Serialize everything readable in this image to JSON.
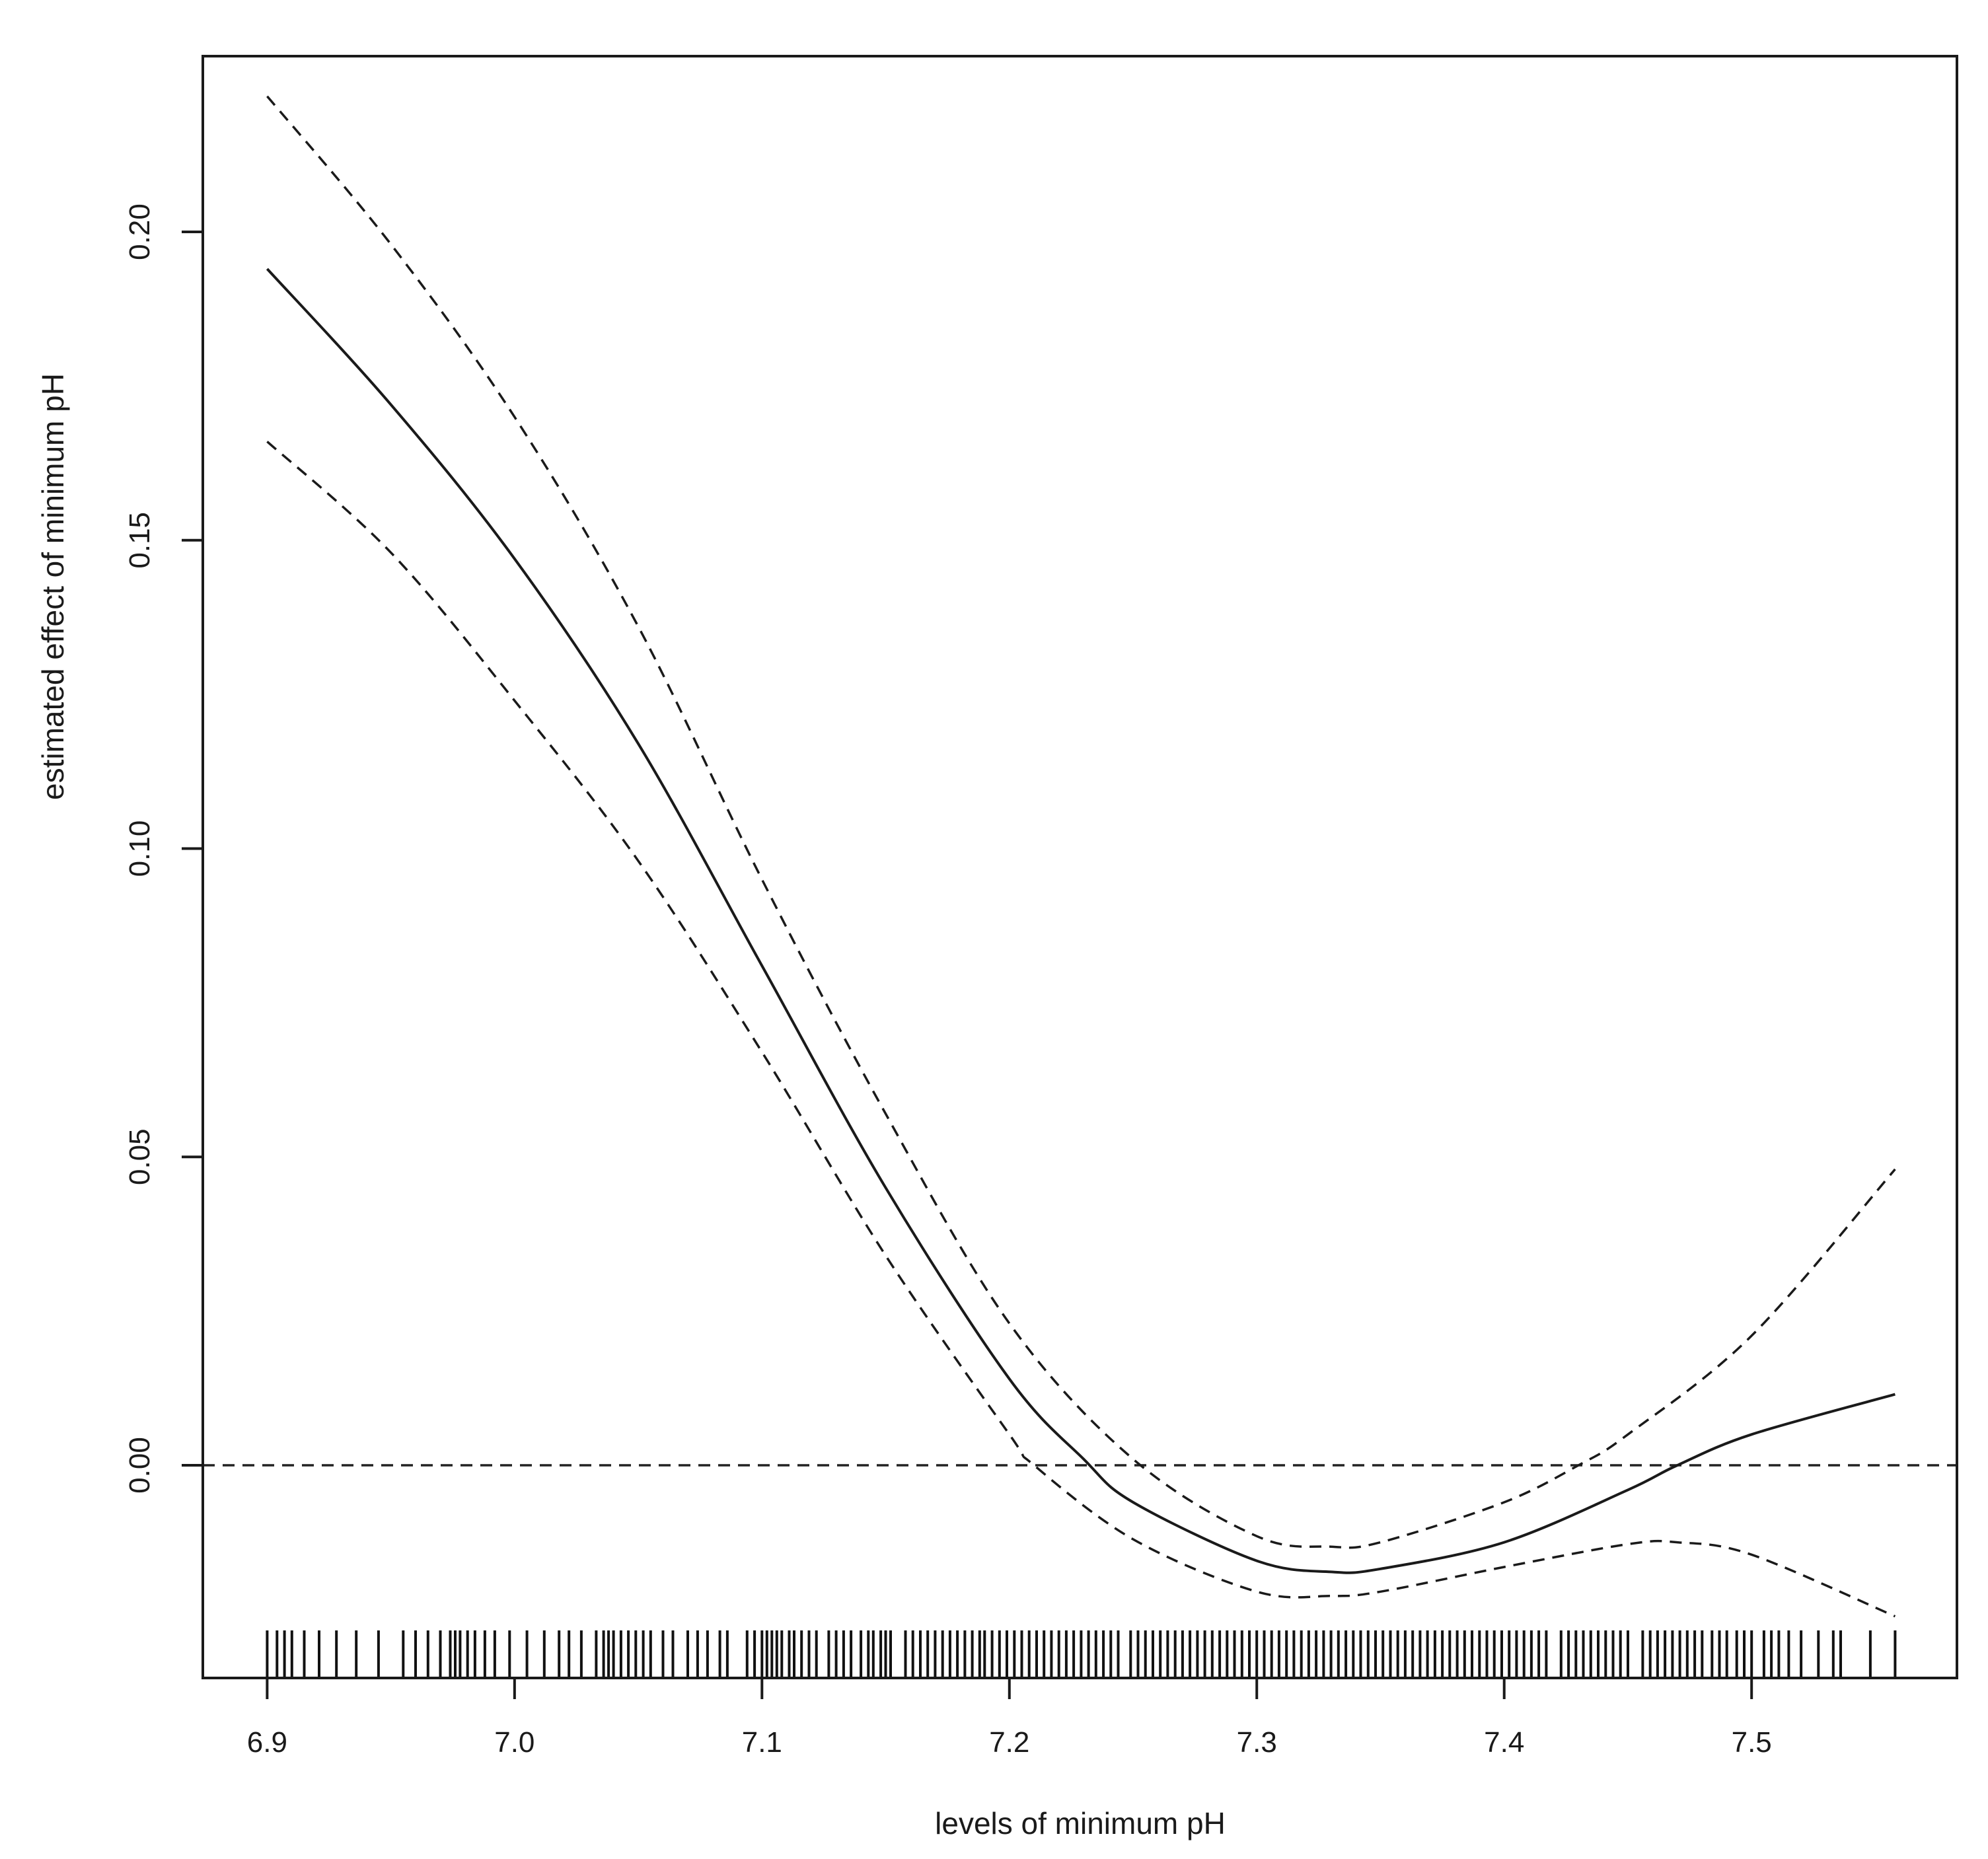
{
  "chart_data": {
    "type": "line",
    "title": "",
    "xlabel": "levels of minimum pH",
    "ylabel": "estimated effect of minimum pH",
    "xlim": [
      6.874,
      7.583
    ],
    "ylim": [
      -0.0345,
      0.2285
    ],
    "x_ticks": [
      "6.9",
      "7.0",
      "7.1",
      "7.2",
      "7.3",
      "7.4",
      "7.5"
    ],
    "y_ticks": [
      "0.00",
      "0.05",
      "0.10",
      "0.15",
      "0.20"
    ],
    "grid": false,
    "legend": "none",
    "reference_line": {
      "y": 0.0,
      "style": "dashed"
    },
    "series": [
      {
        "role": "estimate",
        "style": "solid",
        "x": [
          6.9,
          6.95,
          7.0,
          7.05,
          7.1,
          7.15,
          7.2,
          7.23,
          7.25,
          7.3,
          7.33,
          7.35,
          7.4,
          7.45,
          7.47,
          7.5,
          7.558
        ],
        "y": [
          0.194,
          0.172,
          0.147,
          0.117,
          0.081,
          0.045,
          0.014,
          0.001,
          -0.006,
          -0.0155,
          -0.0173,
          -0.0168,
          -0.0125,
          -0.004,
          0.0,
          0.005,
          0.0115
        ]
      },
      {
        "role": "upper-ci",
        "style": "dashed",
        "x": [
          6.9,
          6.95,
          7.0,
          7.05,
          7.1,
          7.15,
          7.2,
          7.25,
          7.3,
          7.33,
          7.35,
          7.4,
          7.43,
          7.45,
          7.5,
          7.558
        ],
        "y": [
          0.222,
          0.198,
          0.17,
          0.136,
          0.095,
          0.057,
          0.023,
          0.001,
          -0.0115,
          -0.0132,
          -0.0125,
          -0.006,
          0.0,
          0.005,
          0.021,
          0.048
        ]
      },
      {
        "role": "lower-ci",
        "style": "dashed",
        "x": [
          6.9,
          6.95,
          7.0,
          7.05,
          7.1,
          7.15,
          7.2,
          7.21,
          7.25,
          7.3,
          7.33,
          7.35,
          7.4,
          7.45,
          7.47,
          7.5,
          7.558
        ],
        "y": [
          0.166,
          0.148,
          0.124,
          0.098,
          0.067,
          0.034,
          0.005,
          0.0,
          -0.012,
          -0.0205,
          -0.0212,
          -0.0205,
          -0.0165,
          -0.0128,
          -0.0125,
          -0.0145,
          -0.0245
        ]
      }
    ],
    "rug": {
      "x": [
        6.9,
        6.904,
        6.907,
        6.91,
        6.915,
        6.921,
        6.928,
        6.936,
        6.945,
        6.955,
        6.96,
        6.965,
        6.97,
        6.974,
        6.976,
        6.978,
        6.981,
        6.984,
        6.988,
        6.992,
        6.998,
        7.005,
        7.012,
        7.018,
        7.022,
        7.027,
        7.033,
        7.036,
        7.038,
        7.04,
        7.043,
        7.046,
        7.049,
        7.052,
        7.055,
        7.06,
        7.064,
        7.07,
        7.074,
        7.078,
        7.083,
        7.086,
        7.094,
        7.097,
        7.1,
        7.102,
        7.104,
        7.106,
        7.108,
        7.111,
        7.113,
        7.116,
        7.119,
        7.122,
        7.127,
        7.13,
        7.133,
        7.136,
        7.14,
        7.143,
        7.145,
        7.148,
        7.15,
        7.152,
        7.158,
        7.161,
        7.164,
        7.167,
        7.17,
        7.173,
        7.176,
        7.179,
        7.182,
        7.185,
        7.188,
        7.19,
        7.193,
        7.196,
        7.199,
        7.202,
        7.205,
        7.208,
        7.211,
        7.214,
        7.217,
        7.22,
        7.223,
        7.226,
        7.229,
        7.232,
        7.235,
        7.238,
        7.241,
        7.244,
        7.249,
        7.252,
        7.255,
        7.258,
        7.261,
        7.264,
        7.267,
        7.27,
        7.273,
        7.276,
        7.279,
        7.282,
        7.285,
        7.288,
        7.291,
        7.294,
        7.297,
        7.3,
        7.303,
        7.306,
        7.309,
        7.312,
        7.315,
        7.318,
        7.321,
        7.324,
        7.327,
        7.33,
        7.333,
        7.336,
        7.339,
        7.342,
        7.345,
        7.348,
        7.351,
        7.354,
        7.357,
        7.36,
        7.363,
        7.366,
        7.369,
        7.372,
        7.375,
        7.378,
        7.381,
        7.384,
        7.387,
        7.39,
        7.393,
        7.396,
        7.399,
        7.402,
        7.405,
        7.408,
        7.411,
        7.414,
        7.417,
        7.423,
        7.426,
        7.429,
        7.432,
        7.435,
        7.438,
        7.441,
        7.444,
        7.447,
        7.45,
        7.456,
        7.459,
        7.462,
        7.465,
        7.468,
        7.471,
        7.474,
        7.477,
        7.48,
        7.484,
        7.487,
        7.49,
        7.494,
        7.497,
        7.5,
        7.505,
        7.508,
        7.511,
        7.515,
        7.52,
        7.527,
        7.533,
        7.536,
        7.548,
        7.558
      ]
    }
  }
}
